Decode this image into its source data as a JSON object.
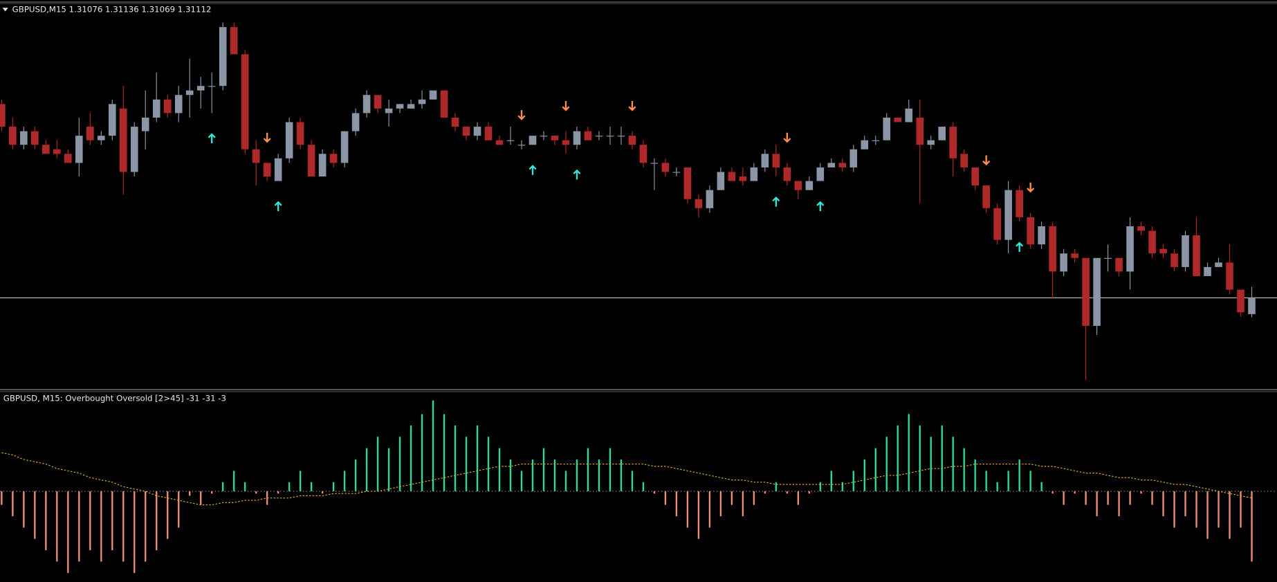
{
  "chart_data": [
    {
      "type": "candlestick",
      "title": "GBPUSD,M15  1.31076 1.31136 1.31069 1.31112",
      "ylim": [
        1.30911,
        1.31759
      ],
      "open": [
        1.3154,
        1.3149,
        1.3145,
        1.3148,
        1.3145,
        1.3144,
        1.3143,
        1.3141,
        1.3149,
        1.3146,
        1.3147,
        1.3153,
        1.3139,
        1.3148,
        1.3151,
        1.3155,
        1.3152,
        1.3156,
        1.3157,
        1.3158,
        1.3158,
        1.3171,
        1.3165,
        1.3144,
        1.3141,
        1.3137,
        1.3142,
        1.315,
        1.3145,
        1.3138,
        1.3143,
        1.3141,
        1.3148,
        1.3152,
        1.3156,
        1.3152,
        1.3153,
        1.3153,
        1.3154,
        1.3155,
        1.3157,
        1.3151,
        1.3149,
        1.3147,
        1.3149,
        1.3146,
        1.3146,
        1.3145,
        1.3145,
        1.3147,
        1.3147,
        1.3146,
        1.3145,
        1.3148,
        1.3147,
        1.3147,
        1.3147,
        1.3147,
        1.3145,
        1.3141,
        1.3141,
        1.3139,
        1.314,
        1.3133,
        1.3131,
        1.3135,
        1.3139,
        1.3138,
        1.3137,
        1.314,
        1.3143,
        1.314,
        1.3137,
        1.3135,
        1.3137,
        1.314,
        1.3141,
        1.314,
        1.3144,
        1.3146,
        1.3146,
        1.3151,
        1.315,
        1.3151,
        1.3145,
        1.3146,
        1.3149,
        1.3143,
        1.314,
        1.3136,
        1.3131,
        1.3124,
        1.3135,
        1.3129,
        1.3123,
        1.3127,
        1.3117,
        1.3121,
        1.312,
        1.3105,
        1.312,
        1.312,
        1.3117,
        1.3127,
        1.3126,
        1.3122,
        1.3121,
        1.3118,
        1.3125,
        1.3116,
        1.3118,
        1.3119,
        1.3113,
        1.31076
      ],
      "high": [
        1.3155,
        1.3151,
        1.3149,
        1.3149,
        1.3146,
        1.3146,
        1.3144,
        1.3151,
        1.3152,
        1.3148,
        1.3155,
        1.3158,
        1.315,
        1.3157,
        1.3161,
        1.3156,
        1.3158,
        1.3164,
        1.316,
        1.3161,
        1.3172,
        1.3172,
        1.3166,
        1.3146,
        1.3141,
        1.3143,
        1.3151,
        1.3151,
        1.3146,
        1.3144,
        1.3144,
        1.3148,
        1.3153,
        1.3157,
        1.3156,
        1.3155,
        1.3154,
        1.3155,
        1.3157,
        1.3157,
        1.3157,
        1.3152,
        1.3149,
        1.315,
        1.315,
        1.3147,
        1.3149,
        1.3146,
        1.3147,
        1.3148,
        1.3147,
        1.3148,
        1.3149,
        1.3149,
        1.3148,
        1.3149,
        1.3149,
        1.3148,
        1.3146,
        1.3142,
        1.3142,
        1.314,
        1.314,
        1.3134,
        1.3136,
        1.314,
        1.314,
        1.314,
        1.3141,
        1.3144,
        1.3145,
        1.3141,
        1.3137,
        1.3138,
        1.3141,
        1.3142,
        1.3142,
        1.3145,
        1.3147,
        1.3147,
        1.3152,
        1.3151,
        1.3155,
        1.3155,
        1.3147,
        1.3149,
        1.315,
        1.3144,
        1.314,
        1.3136,
        1.3132,
        1.3137,
        1.3136,
        1.313,
        1.3128,
        1.3128,
        1.3122,
        1.3122,
        1.312,
        1.312,
        1.3123,
        1.312,
        1.3129,
        1.3128,
        1.3127,
        1.3123,
        1.3122,
        1.3126,
        1.3129,
        1.3119,
        1.312,
        1.3123,
        1.3113,
        1.31136
      ],
      "low": [
        1.3148,
        1.3144,
        1.3144,
        1.3144,
        1.3143,
        1.3142,
        1.3141,
        1.3138,
        1.3145,
        1.3145,
        1.3146,
        1.3134,
        1.3138,
        1.3144,
        1.315,
        1.3151,
        1.315,
        1.3151,
        1.3153,
        1.3152,
        1.3157,
        1.3165,
        1.3143,
        1.3136,
        1.3137,
        1.3137,
        1.3141,
        1.3144,
        1.3138,
        1.3138,
        1.314,
        1.314,
        1.3147,
        1.3151,
        1.3152,
        1.3149,
        1.3152,
        1.3153,
        1.3153,
        1.3155,
        1.3151,
        1.3148,
        1.3146,
        1.3146,
        1.3146,
        1.3145,
        1.3145,
        1.3144,
        1.3145,
        1.3146,
        1.3145,
        1.3143,
        1.3144,
        1.3146,
        1.3146,
        1.3145,
        1.3145,
        1.3144,
        1.314,
        1.3135,
        1.3138,
        1.3138,
        1.3132,
        1.3129,
        1.313,
        1.3135,
        1.3137,
        1.3136,
        1.3137,
        1.3139,
        1.3138,
        1.3136,
        1.3133,
        1.3135,
        1.3137,
        1.314,
        1.3139,
        1.3139,
        1.3144,
        1.3145,
        1.3146,
        1.315,
        1.315,
        1.3132,
        1.3144,
        1.3146,
        1.3138,
        1.3139,
        1.3135,
        1.313,
        1.3123,
        1.3121,
        1.3128,
        1.3122,
        1.3122,
        1.3111,
        1.3116,
        1.3119,
        1.3093,
        1.3103,
        1.3117,
        1.3116,
        1.3113,
        1.3125,
        1.312,
        1.312,
        1.3117,
        1.3117,
        1.3116,
        1.3116,
        1.3118,
        1.3112,
        1.3107,
        1.31069
      ],
      "close": [
        1.3149,
        1.3145,
        1.3148,
        1.3145,
        1.3143,
        1.3143,
        1.3141,
        1.3147,
        1.3146,
        1.3147,
        1.3154,
        1.3139,
        1.3149,
        1.3151,
        1.3155,
        1.3152,
        1.3156,
        1.3157,
        1.3158,
        1.3158,
        1.3171,
        1.3165,
        1.3144,
        1.3141,
        1.3138,
        1.3142,
        1.315,
        1.3145,
        1.3138,
        1.3143,
        1.3141,
        1.3148,
        1.3152,
        1.3156,
        1.3153,
        1.3153,
        1.3154,
        1.3154,
        1.3155,
        1.3157,
        1.3151,
        1.3149,
        1.3147,
        1.3149,
        1.3146,
        1.3145,
        1.3146,
        1.3145,
        1.3147,
        1.3147,
        1.3146,
        1.3145,
        1.3148,
        1.3146,
        1.3147,
        1.3147,
        1.3147,
        1.3145,
        1.3141,
        1.3141,
        1.3139,
        1.3139,
        1.3133,
        1.3131,
        1.3135,
        1.3139,
        1.3137,
        1.3137,
        1.314,
        1.3143,
        1.314,
        1.3137,
        1.3135,
        1.3137,
        1.314,
        1.3141,
        1.314,
        1.3144,
        1.3146,
        1.3146,
        1.3151,
        1.315,
        1.3153,
        1.3145,
        1.3146,
        1.3149,
        1.3142,
        1.314,
        1.3136,
        1.3131,
        1.3124,
        1.3135,
        1.3129,
        1.3123,
        1.3127,
        1.3117,
        1.3121,
        1.312,
        1.3105,
        1.312,
        1.312,
        1.3117,
        1.3127,
        1.3126,
        1.3121,
        1.3121,
        1.3118,
        1.3125,
        1.3116,
        1.3118,
        1.3119,
        1.3113,
        1.3108,
        1.31112
      ],
      "buy_signals": [
        19,
        25,
        48,
        52,
        70,
        74,
        92
      ],
      "sell_signals": [
        24,
        47,
        51,
        57,
        71,
        89,
        93
      ],
      "price_line": 1.31112,
      "up_color": "#8a95a5",
      "down_color": "#b02828",
      "buy_color": "#2ee6d6",
      "sell_color": "#ff8c50",
      "line_color": "#c8c8c8"
    },
    {
      "type": "bar",
      "title": "GBPUSD, M15: Overbought Oversold [2>45]  -31 -31 -3",
      "ylim": [
        -40,
        43
      ],
      "values": [
        -6,
        -11,
        -16,
        -21,
        -26,
        -31,
        -36,
        -31,
        -26,
        -31,
        -26,
        -31,
        -36,
        -31,
        -26,
        -21,
        -16,
        -2,
        -6,
        -1,
        4,
        9,
        4,
        -1,
        -6,
        -1,
        4,
        9,
        4,
        -1,
        4,
        9,
        14,
        19,
        24,
        19,
        24,
        29,
        34,
        40,
        34,
        29,
        24,
        29,
        24,
        19,
        14,
        9,
        14,
        19,
        14,
        9,
        14,
        19,
        14,
        19,
        14,
        9,
        4,
        -1,
        -6,
        -11,
        -16,
        -21,
        -16,
        -11,
        -6,
        -11,
        -6,
        -1,
        4,
        -1,
        -6,
        -1,
        4,
        9,
        4,
        9,
        14,
        19,
        24,
        29,
        34,
        29,
        24,
        29,
        24,
        19,
        14,
        9,
        4,
        9,
        14,
        9,
        4,
        -1,
        -6,
        -1,
        -6,
        -11,
        -6,
        -11,
        -6,
        -1,
        -6,
        -11,
        -16,
        -11,
        -16,
        -21,
        -16,
        -21,
        -16,
        -31
      ],
      "signal": [
        17,
        16,
        14,
        13,
        12,
        10,
        9,
        8,
        6,
        5,
        4,
        2,
        1,
        0,
        -2,
        -3,
        -4,
        -5,
        -6,
        -6,
        -5,
        -5,
        -4,
        -4,
        -3,
        -3,
        -3,
        -2,
        -2,
        -2,
        -1,
        -1,
        -1,
        0,
        0,
        1,
        2,
        3,
        4,
        5,
        6,
        7,
        8,
        9,
        10,
        11,
        11,
        12,
        12,
        12,
        12,
        12,
        12,
        12,
        12,
        12,
        12,
        12,
        12,
        11,
        11,
        10,
        9,
        8,
        7,
        6,
        5,
        5,
        4,
        4,
        3,
        3,
        3,
        3,
        3,
        3,
        3,
        4,
        5,
        6,
        7,
        7,
        8,
        9,
        10,
        10,
        11,
        11,
        12,
        12,
        12,
        12,
        12,
        12,
        11,
        11,
        10,
        9,
        8,
        8,
        7,
        6,
        6,
        5,
        5,
        4,
        3,
        3,
        2,
        1,
        0,
        -1,
        -2,
        -3
      ],
      "levels": [
        0
      ],
      "positive_color": "#1fe096",
      "negative_color": "#f08a78",
      "signal_color": "#e8b020",
      "level_color": "#9a9a9a"
    }
  ]
}
